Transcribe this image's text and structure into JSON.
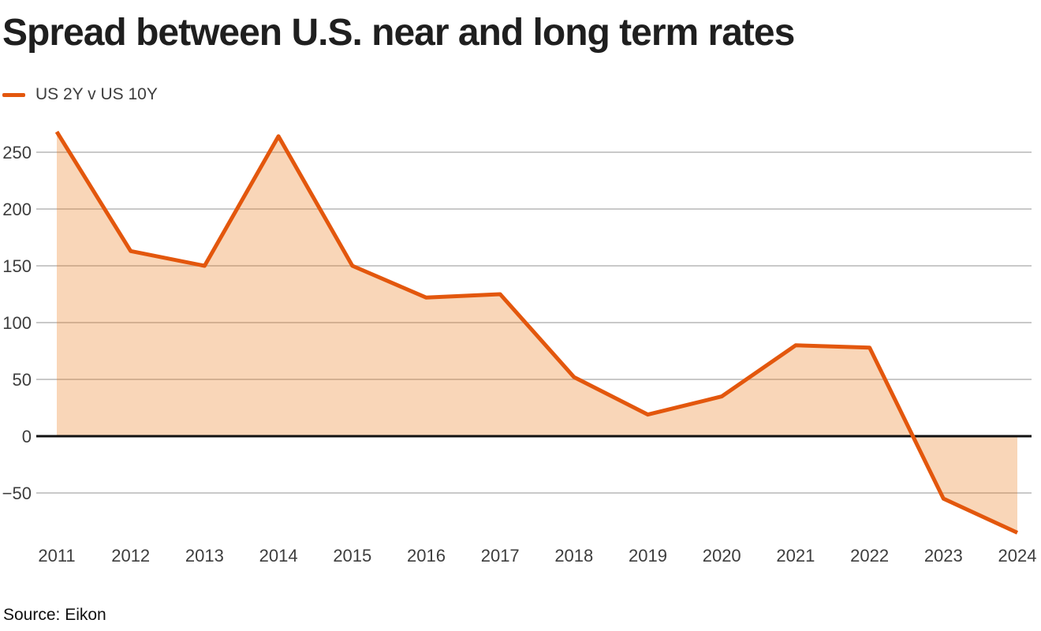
{
  "title": "Spread between U.S. near and long term rates",
  "legend": {
    "label": "US 2Y v US 10Y"
  },
  "source": "Source: Eikon",
  "colors": {
    "line": "#e3570d",
    "fill": "rgba(235,120,20,0.3)",
    "grid": "#c9c9c9",
    "zero_line": "#111111",
    "tick_text": "#3d3d3d",
    "title_text": "#1f1f1f"
  },
  "chart_data": {
    "type": "area",
    "title": "Spread between U.S. near and long term rates",
    "xlabel": "",
    "ylabel": "",
    "x": [
      "2011",
      "2012",
      "2013",
      "2014",
      "2015",
      "2016",
      "2017",
      "2018",
      "2019",
      "2020",
      "2021",
      "2022",
      "2023",
      "2024"
    ],
    "series": [
      {
        "name": "US 2Y v US 10Y",
        "values": [
          268,
          163,
          150,
          264,
          150,
          122,
          125,
          52,
          19,
          35,
          80,
          78,
          -55,
          -85
        ]
      }
    ],
    "baseline": 0,
    "grid": true,
    "legend_position": "top-left",
    "ylim": [
      -100,
      280
    ],
    "y_ticks": [
      {
        "label": "250",
        "value": 250
      },
      {
        "label": "200",
        "value": 200
      },
      {
        "label": "150",
        "value": 150
      },
      {
        "label": "100",
        "value": 100
      },
      {
        "label": "50",
        "value": 50
      },
      {
        "label": "0",
        "value": 0
      },
      {
        "label": "−50",
        "value": -50
      }
    ]
  }
}
